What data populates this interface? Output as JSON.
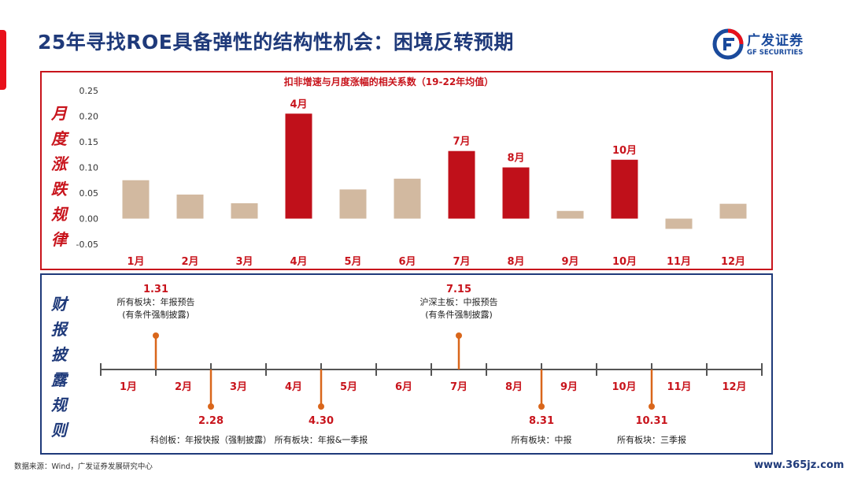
{
  "page": {
    "title": "25年寻找ROE具备弹性的结构性机会：困境反转预期",
    "logo_cn": "广发证券",
    "logo_en": "GF SECURITIES",
    "source": "数据来源：Wind，广发证券发展研究中心",
    "watermark": "www.365jz.com"
  },
  "side_labels": {
    "top": "月\n度\n涨\n跌\n规\n律",
    "bottom": "财\n报\n披\n露\n规\n则"
  },
  "colors": {
    "highlight_bar": "#c0101a",
    "normal_bar": "#d2b9a0",
    "timeline_marker": "#d9661b",
    "title_blue": "#1f3a7a",
    "label_red": "#c8141c"
  },
  "chart_data": {
    "type": "bar",
    "title": "扣非增速与月度涨幅的相关系数（19-22年均值）",
    "categories": [
      "1月",
      "2月",
      "3月",
      "4月",
      "5月",
      "6月",
      "7月",
      "8月",
      "9月",
      "10月",
      "11月",
      "12月"
    ],
    "values": [
      0.075,
      0.047,
      0.03,
      0.205,
      0.057,
      0.078,
      0.132,
      0.1,
      0.015,
      0.115,
      -0.02,
      0.029
    ],
    "highlighted": [
      false,
      false,
      false,
      true,
      false,
      false,
      true,
      true,
      false,
      true,
      false,
      false
    ],
    "bar_labels": [
      "",
      "",
      "",
      "4月",
      "",
      "",
      "7月",
      "8月",
      "",
      "10月",
      "",
      ""
    ],
    "yticks": [
      "0.25",
      "0.20",
      "0.15",
      "0.10",
      "0.05",
      "0.00",
      "-0.05"
    ],
    "ylim": [
      -0.05,
      0.25
    ],
    "xlabel": "",
    "ylabel": ""
  },
  "timeline": {
    "months": [
      "1月",
      "2月",
      "3月",
      "4月",
      "5月",
      "6月",
      "7月",
      "8月",
      "9月",
      "10月",
      "11月",
      "12月"
    ],
    "events": [
      {
        "date": "1.31",
        "pos": 1.0,
        "side": "above",
        "lines": [
          "所有板块：年报预告",
          "(有条件强制披露)"
        ]
      },
      {
        "date": "2.28",
        "pos": 2.0,
        "side": "below",
        "lines": [
          "科创板：年报快报（强制披露）"
        ]
      },
      {
        "date": "4.30",
        "pos": 4.0,
        "side": "below",
        "lines": [
          "所有板块：年报&一季报"
        ]
      },
      {
        "date": "7.15",
        "pos": 6.5,
        "side": "above",
        "lines": [
          "沪深主板：中报预告",
          "(有条件强制披露)"
        ]
      },
      {
        "date": "8.31",
        "pos": 8.0,
        "side": "below",
        "lines": [
          "所有板块：中报"
        ]
      },
      {
        "date": "10.31",
        "pos": 10.0,
        "side": "below",
        "lines": [
          "所有板块：三季报"
        ]
      }
    ]
  }
}
